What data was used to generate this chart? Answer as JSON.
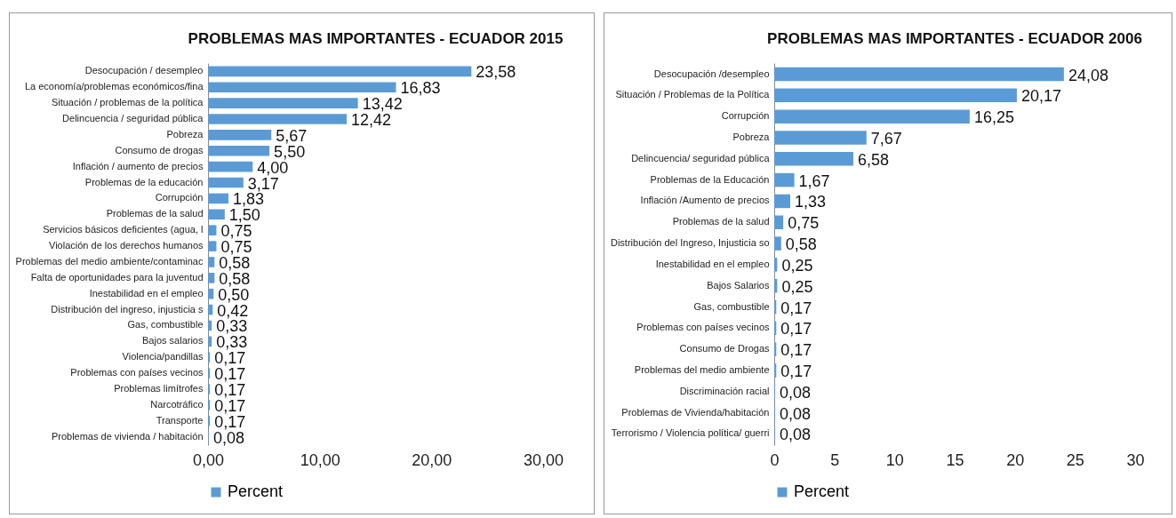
{
  "chart_data": [
    {
      "type": "bar",
      "orientation": "horizontal",
      "title": "PROBLEMAS MAS IMPORTANTES - ECUADOR 2015",
      "legend": "bottom",
      "categories": [
        "Desocupación / desempleo",
        "La economía/problemas económicos/fina",
        "Situación / problemas de la política",
        "Delincuencia / seguridad pública",
        "Pobreza",
        "Consumo de drogas",
        "Inflación / aumento de precios",
        "Problemas de la educación",
        "Corrupción",
        "Problemas de la salud",
        "Servicios básicos deficientes (agua, l",
        "Violación de los derechos humanos",
        "Problemas del medio ambiente/contaminac",
        "Falta de oportunidades para la juventud",
        "Inestabilidad en el empleo",
        "Distribución del ingreso, injusticia s",
        "Gas, combustible",
        "Bajos salarios",
        "Violencia/pandillas",
        "Problemas con países vecinos",
        "Problemas limítrofes",
        "Narcotráfico",
        "Transporte",
        "Problemas de vivienda / habitación"
      ],
      "series": [
        {
          "name": "Percent",
          "color": "#5b9bd5",
          "values": [
            23.58,
            16.83,
            13.42,
            12.42,
            5.67,
            5.5,
            4.0,
            3.17,
            1.83,
            1.5,
            0.75,
            0.75,
            0.58,
            0.58,
            0.5,
            0.42,
            0.33,
            0.33,
            0.17,
            0.17,
            0.17,
            0.17,
            0.17,
            0.08
          ],
          "value_labels": [
            "23,58",
            "16,83",
            "13,42",
            "12,42",
            "5,67",
            "5,50",
            "4,00",
            "3,17",
            "1,83",
            "1,50",
            "0,75",
            "0,75",
            "0,58",
            "0,58",
            "0,50",
            "0,42",
            "0,33",
            "0,33",
            "0,17",
            "0,17",
            "0,17",
            "0,17",
            "0,17",
            "0,08"
          ]
        }
      ],
      "xlim": [
        0,
        30
      ],
      "xticks": [
        {
          "value": 0,
          "label": "0,00"
        },
        {
          "value": 10,
          "label": "10,00"
        },
        {
          "value": 20,
          "label": "20,00"
        },
        {
          "value": 30,
          "label": "30,00"
        }
      ]
    },
    {
      "type": "bar",
      "orientation": "horizontal",
      "title": "PROBLEMAS MAS IMPORTANTES - ECUADOR 2006",
      "legend": "bottom",
      "categories": [
        "Desocupación /desempleo",
        "Situación / Problemas de la Política",
        "Corrupción",
        "Pobreza",
        "Delincuencia/ seguridad pública",
        "Problemas de la Educación",
        "Inflación /Aumento de precios",
        "Problemas de la salud",
        "Distribución del Ingreso, Injusticia so",
        "Inestabilidad en el empleo",
        "Bajos Salarios",
        "Gas, combustible",
        "Problemas con países vecinos",
        "Consumo de Drogas",
        "Problemas del medio ambiente",
        "Discriminación racial",
        "Problemas de Vivienda/habitación",
        "Terrorismo / Violencia política/ guerri"
      ],
      "series": [
        {
          "name": "Percent",
          "color": "#5b9bd5",
          "values": [
            24.08,
            20.17,
            16.25,
            7.67,
            6.58,
            1.67,
            1.33,
            0.75,
            0.58,
            0.25,
            0.25,
            0.17,
            0.17,
            0.17,
            0.17,
            0.08,
            0.08,
            0.08
          ],
          "value_labels": [
            "24,08",
            "20,17",
            "16,25",
            "7,67",
            "6,58",
            "1,67",
            "1,33",
            "0,75",
            "0,58",
            "0,25",
            "0,25",
            "0,17",
            "0,17",
            "0,17",
            "0,17",
            "0,08",
            "0,08",
            "0,08"
          ]
        }
      ],
      "xlim": [
        0,
        30
      ],
      "xticks": [
        0,
        5,
        10,
        15,
        20,
        25,
        30
      ]
    }
  ]
}
